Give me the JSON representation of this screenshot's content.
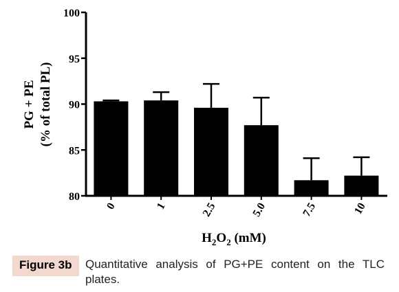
{
  "chart_data": {
    "type": "bar",
    "categories": [
      "0",
      "1",
      "2.5",
      "5.0",
      "7.5",
      "10"
    ],
    "values": [
      90.3,
      90.4,
      89.6,
      87.7,
      81.7,
      82.2
    ],
    "errors": [
      0.1,
      0.9,
      2.6,
      3.0,
      2.4,
      2.0
    ],
    "xlabel_parts": [
      "H",
      "2",
      "O",
      "2",
      " (mM)"
    ],
    "ylabel": [
      "PG + PE",
      "(% of total PL)"
    ],
    "ylim": [
      80,
      100
    ],
    "yticks": [
      "80",
      "85",
      "90",
      "95",
      "100"
    ],
    "grid": false,
    "bar_color": "#000000"
  },
  "caption": {
    "label": "Figure 3b",
    "text": "Quantitative analysis of PG+PE content on the TLC plates."
  }
}
